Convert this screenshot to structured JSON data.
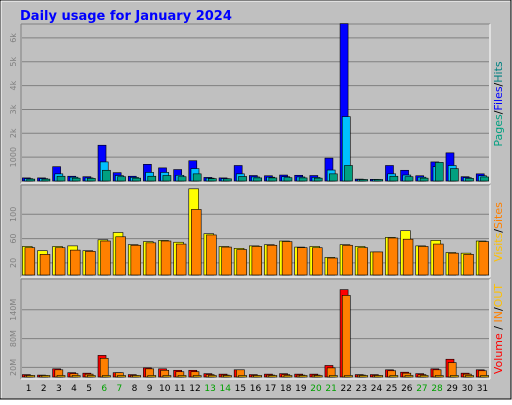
{
  "chart_data": [
    {
      "type": "bar",
      "title": "Daily usage for January 2024",
      "panel": "hits-files-pages",
      "categories": [
        "1",
        "2",
        "3",
        "4",
        "5",
        "6",
        "7",
        "8",
        "9",
        "10",
        "11",
        "12",
        "13",
        "14",
        "15",
        "16",
        "17",
        "18",
        "19",
        "20",
        "21",
        "22",
        "23",
        "24",
        "25",
        "26",
        "27",
        "28",
        "29",
        "30",
        "31"
      ],
      "weekend_categories": [
        "6",
        "7",
        "13",
        "14",
        "20",
        "21",
        "27",
        "28"
      ],
      "yticks": [
        "1000",
        "2k",
        "3k",
        "4k",
        "5k",
        "6k"
      ],
      "ytick_values": [
        1000,
        2000,
        3000,
        4000,
        5000,
        6000
      ],
      "ylim": [
        0,
        6500
      ],
      "series": [
        {
          "name": "Hits",
          "color": "#0000ff",
          "values": [
            130,
            130,
            600,
            200,
            180,
            1500,
            350,
            200,
            700,
            550,
            480,
            850,
            150,
            130,
            650,
            230,
            220,
            250,
            240,
            230,
            960,
            6600,
            80,
            70,
            650,
            450,
            220,
            800,
            1180,
            180,
            300
          ]
        },
        {
          "name": "Files",
          "color": "#00c0ff",
          "values": [
            100,
            100,
            300,
            160,
            130,
            800,
            230,
            150,
            360,
            360,
            240,
            520,
            120,
            100,
            300,
            170,
            160,
            180,
            170,
            150,
            460,
            2700,
            60,
            50,
            300,
            250,
            160,
            600,
            650,
            140,
            220
          ]
        },
        {
          "name": "Pages",
          "color": "#00a080",
          "values": [
            80,
            80,
            200,
            120,
            110,
            450,
            180,
            120,
            200,
            230,
            180,
            300,
            100,
            90,
            190,
            130,
            130,
            140,
            130,
            120,
            300,
            650,
            50,
            40,
            200,
            180,
            120,
            780,
            520,
            110,
            170
          ]
        }
      ],
      "legend": [
        "Pages",
        "Files",
        "Hits"
      ]
    },
    {
      "type": "bar",
      "panel": "sites-visits",
      "categories": [
        "1",
        "2",
        "3",
        "4",
        "5",
        "6",
        "7",
        "8",
        "9",
        "10",
        "11",
        "12",
        "13",
        "14",
        "15",
        "16",
        "17",
        "18",
        "19",
        "20",
        "21",
        "22",
        "23",
        "24",
        "25",
        "26",
        "27",
        "28",
        "29",
        "30",
        "31"
      ],
      "yticks": [
        "20",
        "60",
        "100"
      ],
      "ytick_values": [
        20,
        60,
        100
      ],
      "ylim": [
        0,
        145
      ],
      "series": [
        {
          "name": "Visits",
          "color": "#ffff00",
          "values": [
            47,
            40,
            47,
            48,
            40,
            58,
            70,
            50,
            55,
            57,
            54,
            142,
            68,
            47,
            44,
            48,
            50,
            56,
            46,
            47,
            29,
            50,
            47,
            38,
            62,
            73,
            48,
            57,
            37,
            36,
            56
          ]
        },
        {
          "name": "Sites",
          "color": "#ff8000",
          "values": [
            45,
            34,
            45,
            41,
            39,
            56,
            63,
            49,
            53,
            56,
            51,
            108,
            66,
            46,
            42,
            47,
            49,
            55,
            45,
            45,
            28,
            49,
            45,
            38,
            61,
            59,
            47,
            51,
            36,
            34,
            55
          ]
        }
      ],
      "legend": [
        "Sites",
        "Visits"
      ]
    },
    {
      "type": "bar",
      "panel": "volume-in-out",
      "categories": [
        "1",
        "2",
        "3",
        "4",
        "5",
        "6",
        "7",
        "8",
        "9",
        "10",
        "11",
        "12",
        "13",
        "14",
        "15",
        "16",
        "17",
        "18",
        "19",
        "20",
        "21",
        "22",
        "23",
        "24",
        "25",
        "26",
        "27",
        "28",
        "29",
        "30",
        "31"
      ],
      "yticks": [
        "20M",
        "80M",
        "140M"
      ],
      "ytick_values": [
        20,
        80,
        140
      ],
      "ylim": [
        0,
        200
      ],
      "series": [
        {
          "name": "Volume",
          "color": "#ff0000",
          "values": [
            5,
            4,
            17,
            9,
            8,
            45,
            9,
            5,
            19,
            17,
            14,
            14,
            7,
            6,
            15,
            5,
            6,
            7,
            6,
            6,
            24,
            182,
            5,
            5,
            15,
            10,
            7,
            17,
            37,
            8,
            15
          ]
        },
        {
          "name": "IN",
          "color": "#ff8000",
          "values": [
            3,
            3,
            15,
            7,
            6,
            39,
            9,
            3,
            17,
            14,
            11,
            11,
            5,
            4,
            15,
            3,
            4,
            5,
            4,
            4,
            19,
            170,
            4,
            3,
            13,
            8,
            5,
            15,
            30,
            6,
            13
          ]
        },
        {
          "name": "OUT",
          "color": "#ffc000",
          "values": [
            1,
            1,
            2,
            1,
            1,
            2,
            1,
            1,
            2,
            2,
            1,
            1,
            1,
            1,
            1,
            1,
            1,
            1,
            1,
            1,
            2,
            2,
            1,
            1,
            1,
            1,
            1,
            1,
            2,
            1,
            1
          ]
        }
      ],
      "legend": [
        "Volume",
        "IN",
        "OUT"
      ]
    }
  ],
  "palette": {
    "frame": "#c0c0c0",
    "plot_bg": "#c0c0c0",
    "title_color": "#0000ff",
    "weekday_label": "#000000",
    "weekend_label": "#00a000",
    "hits_label": "#008080",
    "files_label": "#0000ff",
    "pages_label": "#00a080",
    "sites_label": "#ff8000",
    "visits_label": "#ffc000",
    "volume_label": "#ff0000",
    "in_label": "#ff8000",
    "out_label": "#ffc000"
  }
}
